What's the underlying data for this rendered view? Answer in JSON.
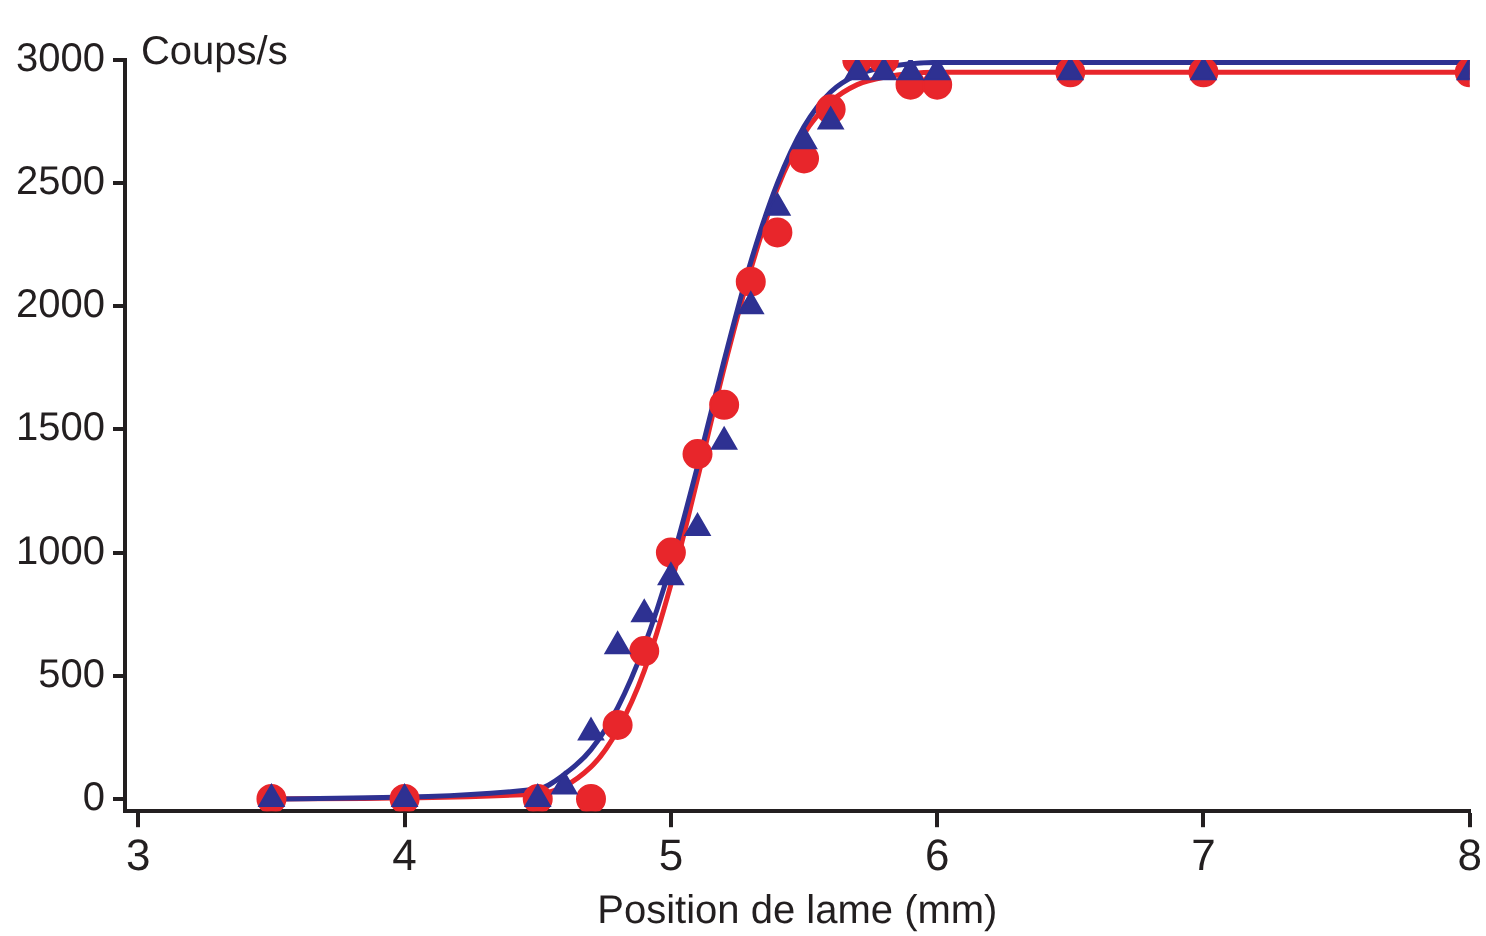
{
  "chart_data": {
    "type": "scatter",
    "xlabel": "Position de lame (mm)",
    "ylabel": "Coups/s",
    "xlim": [
      2.95,
      8
    ],
    "xticks": [
      3,
      4,
      5,
      6,
      7,
      8
    ],
    "ylim": [
      -50,
      3000
    ],
    "yticks": [
      0,
      500,
      1000,
      1500,
      2000,
      2500,
      3000
    ],
    "grid": false,
    "legend": false,
    "series": [
      {
        "type": "line",
        "marker": "none",
        "color": "#e8262b",
        "x": [
          3.5,
          4.5,
          4.7,
          4.8,
          4.9,
          5.0,
          5.1,
          5.2,
          5.3,
          5.4,
          5.5,
          5.6,
          5.7,
          5.8,
          6.0,
          8
        ],
        "values": [
          0,
          20,
          130,
          280,
          520,
          870,
          1300,
          1750,
          2150,
          2480,
          2700,
          2830,
          2900,
          2930,
          2950,
          2950
        ]
      },
      {
        "type": "line",
        "marker": "none",
        "color": "#2e3192",
        "x": [
          3.5,
          4.5,
          4.6,
          4.7,
          4.8,
          4.9,
          5.0,
          5.1,
          5.2,
          5.3,
          5.4,
          5.5,
          5.6,
          5.7,
          5.8,
          6.0,
          8
        ],
        "values": [
          0,
          40,
          100,
          200,
          370,
          620,
          950,
          1350,
          1780,
          2180,
          2500,
          2730,
          2870,
          2940,
          2970,
          2990,
          2990
        ]
      },
      {
        "marker": "circle",
        "color": "#e8262b",
        "x": [
          3.5,
          4,
          4.5,
          4.7,
          4.8,
          4.9,
          5.0,
          5.1,
          5.2,
          5.3,
          5.4,
          5.5,
          5.6,
          5.7,
          5.8,
          5.9,
          6.0,
          6.5,
          7,
          8
        ],
        "values": [
          0,
          0,
          0,
          0,
          300,
          600,
          1000,
          1400,
          1600,
          2100,
          2300,
          2600,
          2800,
          3000,
          3000,
          2900,
          2900,
          2950,
          2950,
          2950
        ]
      },
      {
        "marker": "triangle",
        "color": "#2e3192",
        "x": [
          3.5,
          4,
          4.5,
          4.6,
          4.7,
          4.8,
          4.9,
          5.0,
          5.1,
          5.2,
          5.3,
          5.4,
          5.5,
          5.6,
          5.7,
          5.8,
          5.9,
          6.0,
          6.5,
          7,
          8
        ],
        "values": [
          0,
          0,
          0,
          50,
          270,
          620,
          750,
          900,
          1100,
          1450,
          2000,
          2400,
          2670,
          2750,
          2950,
          2950,
          2950,
          2950,
          2950,
          2950,
          2950
        ]
      }
    ]
  }
}
